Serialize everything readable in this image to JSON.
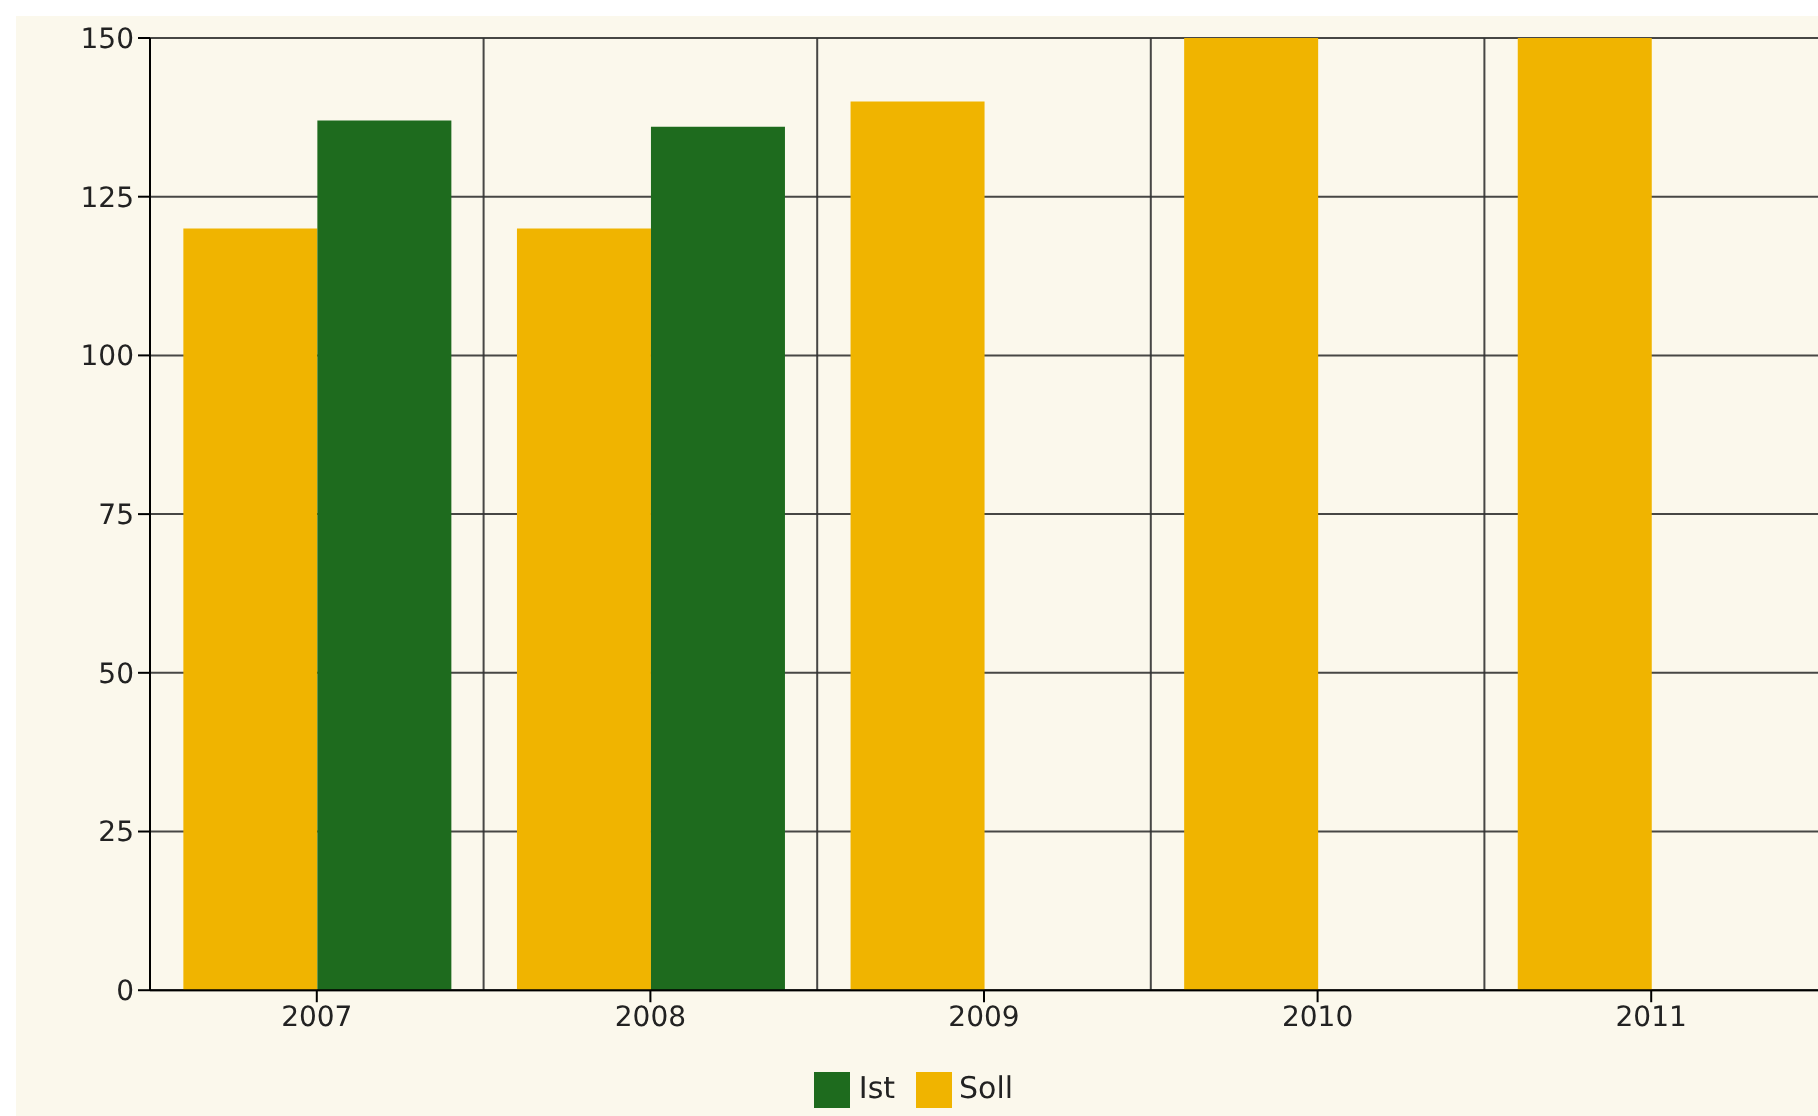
{
  "chart_data": {
    "type": "bar",
    "categories": [
      "2007",
      "2008",
      "2009",
      "2010",
      "2011"
    ],
    "series": [
      {
        "name": "Soll",
        "color": "#f0b400",
        "values": [
          120,
          120,
          140,
          150,
          150
        ]
      },
      {
        "name": "Ist",
        "color": "#1e6b1e",
        "values": [
          137,
          136,
          null,
          null,
          null
        ]
      }
    ],
    "ylim": [
      0,
      150
    ],
    "yticks": [
      0,
      25,
      50,
      75,
      100,
      125,
      150
    ],
    "grid": true,
    "legend": "bottom"
  }
}
